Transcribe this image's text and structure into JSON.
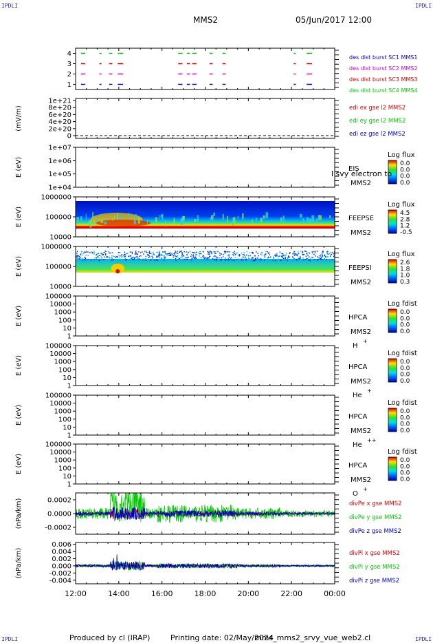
{
  "corner_labels": [
    "IPDLI",
    "IPDLI",
    "IPDLI",
    "IPDLI"
  ],
  "header": {
    "spacecraft": "MMS2",
    "date": "05/Jun/2017 12:00"
  },
  "footer": {
    "produced_by": "Produced by cl (IRAP)",
    "printing_date": "Printing date: 02/May/2024",
    "file": "mms_mms2_srvy_vue_web2.cl"
  },
  "colors": {
    "mms1": "#0000cc",
    "mms2": "#cc00cc",
    "mms3": "#cc0000",
    "mms4": "#00cc00",
    "x": "#dd0000",
    "y": "#00cc00",
    "z": "#0000cc"
  },
  "chart_data": [
    {
      "id": "burst",
      "type": "timeline",
      "x_range": [
        "12:00",
        "00:00"
      ],
      "yticks": [
        "1",
        "2",
        "3",
        "4"
      ],
      "ylim": [
        0.5,
        4.5
      ],
      "rows": [
        {
          "level": 4,
          "label": "des dist burst SC4 MMS4",
          "color_key": "mms4",
          "intervals": [
            [
              12.25,
              12.45
            ],
            [
              13.1,
              13.2
            ],
            [
              13.55,
              13.7
            ],
            [
              13.95,
              14.2
            ],
            [
              16.75,
              16.95
            ],
            [
              17.15,
              17.3
            ],
            [
              17.4,
              17.6
            ],
            [
              18.2,
              18.35
            ],
            [
              18.8,
              18.95
            ],
            [
              22.1,
              22.2
            ],
            [
              22.7,
              22.95
            ]
          ]
        },
        {
          "level": 3,
          "label": "des dist burst SC3 MMS3",
          "color_key": "mms3",
          "intervals": [
            [
              12.25,
              12.45
            ],
            [
              13.1,
              13.2
            ],
            [
              13.55,
              13.7
            ],
            [
              13.95,
              14.2
            ],
            [
              16.75,
              16.95
            ],
            [
              17.15,
              17.3
            ],
            [
              17.4,
              17.6
            ],
            [
              18.2,
              18.35
            ],
            [
              18.8,
              18.95
            ],
            [
              22.1,
              22.2
            ],
            [
              22.7,
              22.95
            ]
          ]
        },
        {
          "level": 2,
          "label": "des dist burst SC2 MMS2",
          "color_key": "mms2",
          "intervals": [
            [
              12.25,
              12.45
            ],
            [
              13.1,
              13.2
            ],
            [
              13.55,
              13.7
            ],
            [
              13.95,
              14.2
            ],
            [
              16.75,
              16.95
            ],
            [
              17.15,
              17.3
            ],
            [
              17.4,
              17.6
            ],
            [
              18.2,
              18.35
            ],
            [
              18.8,
              18.95
            ],
            [
              22.1,
              22.2
            ],
            [
              22.7,
              22.95
            ]
          ]
        },
        {
          "level": 1,
          "label": "des dist burst SC1 MMS1",
          "color_key": "mms1",
          "intervals": [
            [
              12.25,
              12.45
            ],
            [
              13.1,
              13.2
            ],
            [
              13.55,
              13.7
            ],
            [
              13.95,
              14.2
            ],
            [
              16.75,
              16.95
            ],
            [
              17.15,
              17.3
            ],
            [
              17.4,
              17.6
            ],
            [
              18.2,
              18.35
            ],
            [
              18.8,
              18.95
            ],
            [
              22.1,
              22.2
            ],
            [
              22.7,
              22.95
            ]
          ]
        }
      ],
      "legend_order": [
        "des dist burst SC1 MMS1",
        "des dist burst SC2 MMS2",
        "des dist burst SC3 MMS3",
        "des dist burst SC4 MMS4"
      ]
    },
    {
      "id": "edi",
      "type": "line",
      "ylabel": "(mV/m)",
      "yticks": [
        "1e+21",
        "8e+20",
        "6e+20",
        "4e+20",
        "2e+20",
        "0"
      ],
      "ylim": [
        0,
        1e+21
      ],
      "series": [
        {
          "name": "edi ex gse l2 MMS2",
          "color_key": "x"
        },
        {
          "name": "edi ey gse l2 MMS2",
          "color_key": "y"
        },
        {
          "name": "edi ez gse l2 MMS2",
          "color_key": "z"
        }
      ]
    },
    {
      "id": "eis",
      "type": "heatmap",
      "ylabel": "E (eV)",
      "yscale": "log",
      "yticks": [
        "1e+07",
        "1e+06",
        "1e+05",
        "1e+04"
      ],
      "ylim": [
        10000.0,
        10000000.0
      ],
      "instrument": [
        "EIS",
        "MMS2"
      ],
      "overlay_text": "l svy electron to",
      "colorbar": {
        "title": "Log flux",
        "ticks": [
          "0.0",
          "0.0",
          "0.0",
          "0.0"
        ]
      },
      "data": "empty"
    },
    {
      "id": "feeps_e",
      "type": "heatmap",
      "ylabel": "E (eV)",
      "yscale": "log",
      "yticks": [
        "1000000",
        "100000",
        "10000"
      ],
      "ylim": [
        10000,
        1000000
      ],
      "instrument": [
        "FEEPSE",
        "MMS2"
      ],
      "colorbar": {
        "title": "Log flux",
        "ticks": [
          "4.5",
          "2.8",
          "1.2",
          "-0.5"
        ]
      }
    },
    {
      "id": "feeps_i",
      "type": "heatmap",
      "ylabel": "E (eV)",
      "yscale": "log",
      "yticks": [
        "1000000",
        "100000",
        "10000"
      ],
      "ylim": [
        10000,
        1000000
      ],
      "instrument": [
        "FEEPSI",
        "MMS2"
      ],
      "colorbar": {
        "title": "Log flux",
        "ticks": [
          "2.6",
          "1.8",
          "1.0",
          "0.3"
        ]
      }
    },
    {
      "id": "hpca_h",
      "type": "heatmap",
      "ylabel": "E (eV)",
      "yscale": "log",
      "yticks": [
        "100000",
        "10000",
        "1000",
        "100",
        "10",
        "1"
      ],
      "ylim": [
        1,
        100000
      ],
      "instrument": [
        "HPCA",
        "MMS2"
      ],
      "species": "H",
      "charge": "+",
      "colorbar": {
        "title": "Log fdist",
        "ticks": [
          "0.0",
          "0.0",
          "0.0",
          "0.0"
        ]
      },
      "data": "empty"
    },
    {
      "id": "hpca_he1",
      "type": "heatmap",
      "ylabel": "E (eV)",
      "yscale": "log",
      "yticks": [
        "100000",
        "10000",
        "1000",
        "100",
        "10",
        "1"
      ],
      "ylim": [
        1,
        100000
      ],
      "instrument": [
        "HPCA",
        "MMS2"
      ],
      "species": "He",
      "charge": "+",
      "colorbar": {
        "title": "Log fdist",
        "ticks": [
          "0.0",
          "0.0",
          "0.0",
          "0.0"
        ]
      },
      "data": "empty"
    },
    {
      "id": "hpca_he2",
      "type": "heatmap",
      "ylabel": "E (eV)",
      "yscale": "log",
      "yticks": [
        "100000",
        "10000",
        "1000",
        "100",
        "10",
        "1"
      ],
      "ylim": [
        1,
        100000
      ],
      "instrument": [
        "HPCA",
        "MMS2"
      ],
      "species": "He",
      "charge": "++",
      "colorbar": {
        "title": "Log fdist",
        "ticks": [
          "0.0",
          "0.0",
          "0.0",
          "0.0"
        ]
      },
      "data": "empty"
    },
    {
      "id": "hpca_o",
      "type": "heatmap",
      "ylabel": "E (eV)",
      "yscale": "log",
      "yticks": [
        "100000",
        "10000",
        "1000",
        "100",
        "10",
        "1"
      ],
      "ylim": [
        1,
        100000
      ],
      "instrument": [
        "HPCA",
        "MMS2"
      ],
      "species": "O",
      "charge": "+",
      "colorbar": {
        "title": "Log fdist",
        "ticks": [
          "0.0",
          "0.0",
          "0.0",
          "0.0"
        ]
      },
      "data": "empty"
    },
    {
      "id": "divpe",
      "type": "line",
      "ylabel": "(nPa/km)",
      "yticks": [
        "0.0002",
        "0.0000",
        "-0.0002"
      ],
      "ylim": [
        -0.0003,
        0.0003
      ],
      "series": [
        {
          "name": "divPe x gse MMS2",
          "color_key": "x",
          "amp": 3e-05
        },
        {
          "name": "divPe y gse MMS2",
          "color_key": "y",
          "amp": 8e-05
        },
        {
          "name": "divPe z gse MMS2",
          "color_key": "z",
          "amp": 3e-05
        }
      ]
    },
    {
      "id": "divpi",
      "type": "line",
      "ylabel": "(nPa/km)",
      "yticks": [
        "0.006",
        "0.004",
        "0.002",
        "0.000",
        "-0.002",
        "-0.004"
      ],
      "ylim": [
        -0.005,
        0.0065
      ],
      "series": [
        {
          "name": "divPi x gse MMS2",
          "color_key": "x",
          "amp": 0.0003
        },
        {
          "name": "divPi y gse MMS2",
          "color_key": "y",
          "amp": 0.0004
        },
        {
          "name": "divPi z gse MMS2",
          "color_key": "z",
          "amp": 0.0004
        }
      ]
    }
  ],
  "x_axis": {
    "ticks": [
      "12:00",
      "14:00",
      "16:00",
      "18:00",
      "20:00",
      "22:00",
      "00:00"
    ],
    "range_hours": [
      12,
      24
    ]
  }
}
